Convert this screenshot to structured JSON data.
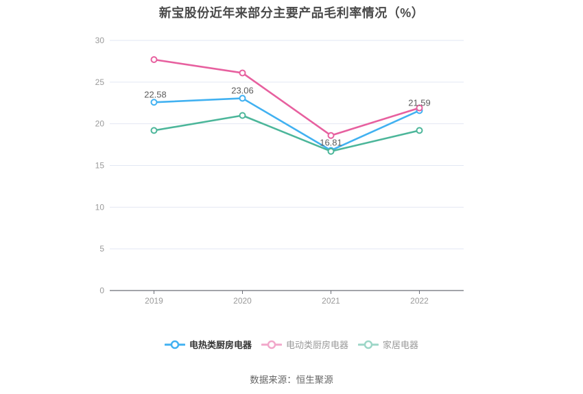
{
  "chart_data": {
    "type": "line",
    "title": "新宝股份近年来部分主要产品毛利率情况（%）",
    "source": "数据来源：恒生聚源",
    "categories": [
      "2019",
      "2020",
      "2021",
      "2022"
    ],
    "xlabel": "",
    "ylabel": "",
    "ylim": [
      0,
      30
    ],
    "ytick_step": 5,
    "grid": true,
    "legend_position": "bottom",
    "colors": {
      "grid_line": "#e2e7f3",
      "axis_line": "#6b6e76",
      "tick_label": "#999999",
      "data_label": "#5c5c5c",
      "title": "#4a4a4a"
    },
    "series": [
      {
        "name": "电热类厨房电器",
        "color": "#41b1f1",
        "values": [
          22.58,
          23.06,
          16.81,
          21.59
        ],
        "labels": [
          "22.58",
          "23.06",
          "16.81",
          "21.59"
        ],
        "show_labels": true,
        "legend_emphasis": true
      },
      {
        "name": "电动类厨房电器",
        "color": "#e7609f",
        "values": [
          27.7,
          26.1,
          18.6,
          21.9
        ],
        "labels": [],
        "show_labels": false,
        "legend_emphasis": false
      },
      {
        "name": "家居电器",
        "color": "#4cb69a",
        "values": [
          19.2,
          21.0,
          16.7,
          19.2
        ],
        "labels": [],
        "show_labels": false,
        "legend_emphasis": false
      }
    ]
  }
}
